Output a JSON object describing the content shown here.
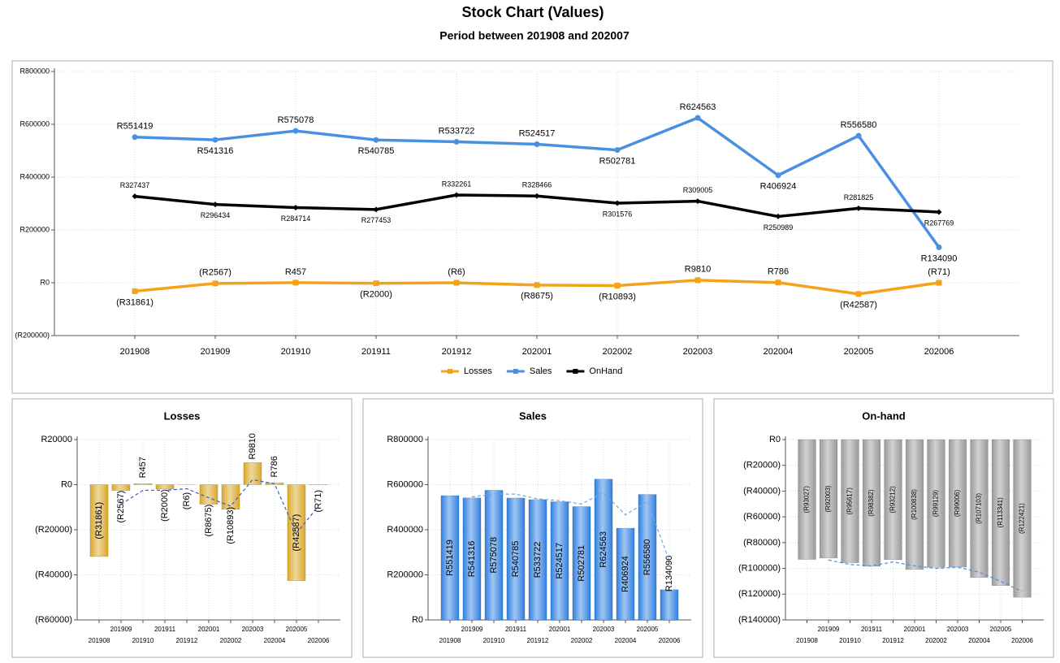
{
  "chart_data": [
    {
      "type": "line",
      "title": "Stock Chart (Values)",
      "subtitle": "Period between 201908 and 202007",
      "categories": [
        "201908",
        "201909",
        "201910",
        "201911",
        "201912",
        "202001",
        "202002",
        "202003",
        "202004",
        "202005",
        "202006"
      ],
      "series": [
        {
          "name": "Losses",
          "color": "#f5a21b",
          "marker": "square",
          "values": [
            -31861,
            -2567,
            457,
            -2000,
            -6,
            -8675,
            -10893,
            9810,
            786,
            -42587,
            -71
          ],
          "value_labels": [
            "(R31861)",
            "(R2567)",
            "R457",
            "(R2000)",
            "(R6)",
            "(R8675)",
            "(R10893)",
            "R9810",
            "R786",
            "(R42587)",
            "(R71)"
          ]
        },
        {
          "name": "Sales",
          "color": "#4a90e2",
          "marker": "circle",
          "values": [
            551419,
            541316,
            575078,
            540785,
            533722,
            524517,
            502781,
            624563,
            406924,
            556580,
            134090
          ],
          "value_labels": [
            "R551419",
            "R541316",
            "R575078",
            "R540785",
            "R533722",
            "R524517",
            "R502781",
            "R624563",
            "R406924",
            "R556580",
            "R134090"
          ]
        },
        {
          "name": "OnHand",
          "color": "#000000",
          "marker": "diamond",
          "values": [
            327437,
            296434,
            284714,
            277453,
            332261,
            328466,
            301576,
            309005,
            250989,
            281825,
            267769
          ],
          "value_labels": [
            "R327437",
            "R296434",
            "R284714",
            "R277453",
            "R332261",
            "R328466",
            "R301576",
            "R309005",
            "R250989",
            "R281825",
            "R267769"
          ]
        }
      ],
      "ylim": [
        -200000,
        800000
      ],
      "yticks": [
        {
          "value": -200000,
          "label": "(R200000)"
        },
        {
          "value": 0,
          "label": "R0"
        },
        {
          "value": 200000,
          "label": "R200000"
        },
        {
          "value": 400000,
          "label": "R400000"
        },
        {
          "value": 600000,
          "label": "R600000"
        },
        {
          "value": 800000,
          "label": "R800000"
        }
      ],
      "grid": true,
      "legend": "bottom"
    },
    {
      "type": "bar",
      "title": "Losses",
      "categories": [
        "201908",
        "201909",
        "201910",
        "201911",
        "201912",
        "202001",
        "202002",
        "202003",
        "202004",
        "202005",
        "202006"
      ],
      "series": [
        {
          "color": "#d9a81c",
          "values": [
            -31861,
            -2567,
            457,
            -2000,
            -6,
            -8675,
            -10893,
            9810,
            786,
            -42587,
            -71
          ],
          "value_labels": [
            "(R31861)",
            "(R2567)",
            "R457",
            "(R2000)",
            "(R6)",
            "(R8675)",
            "(R10893)",
            "R9810",
            "R786",
            "(R42587)",
            "(R71)"
          ]
        },
        {
          "color": "#2f5fd8",
          "dashed": true,
          "values": [
            null,
            -8700,
            -2500,
            -2500,
            -1800,
            -5800,
            -9500,
            2200,
            400,
            -21500,
            -9500
          ]
        }
      ],
      "ylim": [
        -60000,
        20000
      ],
      "yticks": [
        {
          "value": -60000,
          "label": "(R60000)"
        },
        {
          "value": -40000,
          "label": "(R40000)"
        },
        {
          "value": -20000,
          "label": "(R20000)"
        },
        {
          "value": 0,
          "label": "R0"
        },
        {
          "value": 20000,
          "label": "R20000"
        }
      ],
      "grid": true
    },
    {
      "type": "bar",
      "title": "Sales",
      "categories": [
        "201908",
        "201909",
        "201910",
        "201911",
        "201912",
        "202001",
        "202002",
        "202003",
        "202004",
        "202005",
        "202006"
      ],
      "series": [
        {
          "color": "#2a7fe0",
          "values": [
            551419,
            541316,
            575078,
            540785,
            533722,
            524517,
            502781,
            624563,
            406924,
            556580,
            134090
          ],
          "value_labels": [
            "R551419",
            "R541316",
            "R575078",
            "R540785",
            "R533722",
            "R524517",
            "R502781",
            "R624563",
            "R406924",
            "R556580",
            "R134090"
          ]
        },
        {
          "color": "#6aa8e8",
          "dashed": true,
          "values": [
            null,
            546000,
            558000,
            558000,
            537000,
            529000,
            514000,
            564000,
            466000,
            526000,
            263000
          ]
        }
      ],
      "ylim": [
        0,
        800000
      ],
      "yticks": [
        {
          "value": 0,
          "label": "R0"
        },
        {
          "value": 200000,
          "label": "R200000"
        },
        {
          "value": 400000,
          "label": "R400000"
        },
        {
          "value": 600000,
          "label": "R600000"
        },
        {
          "value": 800000,
          "label": "R800000"
        }
      ],
      "grid": true
    },
    {
      "type": "bar",
      "title": "On-hand",
      "categories": [
        "201908",
        "201909",
        "201910",
        "201911",
        "201912",
        "202001",
        "202002",
        "202003",
        "202004",
        "202005",
        "202006"
      ],
      "series": [
        {
          "color": "#9a9a9a",
          "values": [
            -93027,
            -92003,
            -95617,
            -98382,
            -93212,
            -100838,
            -99129,
            -99006,
            -107103,
            -113341,
            -122421
          ],
          "value_labels": [
            "(R93027)",
            "(R92003)",
            "(R95617)",
            "(R98382)",
            "(R93212)",
            "(R100838)",
            "(R99129)",
            "(R99006)",
            "(R107103)",
            "(R113341)",
            "(R122421)"
          ]
        },
        {
          "color": "#4a90e2",
          "dashed": true,
          "values": [
            null,
            -93500,
            -97000,
            -98000,
            -95000,
            -98000,
            -100000,
            -99000,
            -103000,
            -110000,
            -118000
          ]
        }
      ],
      "ylim": [
        -140000,
        0
      ],
      "yticks": [
        {
          "value": -140000,
          "label": "(R140000)"
        },
        {
          "value": -120000,
          "label": "(R120000)"
        },
        {
          "value": -100000,
          "label": "(R100000)"
        },
        {
          "value": -80000,
          "label": "(R80000)"
        },
        {
          "value": -60000,
          "label": "(R60000)"
        },
        {
          "value": -40000,
          "label": "(R40000)"
        },
        {
          "value": -20000,
          "label": "(R20000)"
        },
        {
          "value": 0,
          "label": "R0"
        }
      ],
      "grid": true
    }
  ]
}
